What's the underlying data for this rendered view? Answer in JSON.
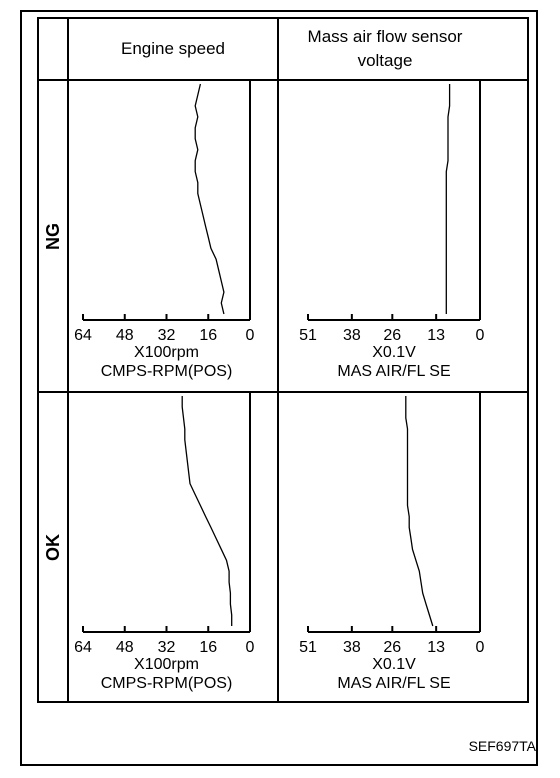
{
  "table": {
    "headers": [
      "Engine speed",
      "Mass air flow sensor voltage"
    ],
    "rows": [
      "NG",
      "OK"
    ]
  },
  "figure_id": "SEF697TA",
  "chart_data": [
    {
      "type": "line",
      "xlabel": "X100rpm",
      "item": "CMPS-RPM(POS)",
      "xlim": [
        64,
        0
      ],
      "xticks": [
        64,
        48,
        32,
        16,
        0
      ],
      "color": "#000000",
      "values": [
        19,
        20,
        21,
        20,
        21,
        21,
        20,
        21,
        21,
        20,
        20,
        19,
        18,
        17,
        16,
        15,
        13,
        12,
        11,
        10,
        11,
        10
      ]
    },
    {
      "type": "line",
      "xlabel": "X0.1V",
      "item": "MAS AIR/FL SE",
      "xlim": [
        51,
        0
      ],
      "xticks": [
        51,
        38,
        26,
        13,
        0
      ],
      "color": "#000000",
      "values": [
        9,
        9,
        9,
        9.5,
        9.5,
        9.5,
        9.5,
        9.5,
        10,
        10,
        10,
        10,
        10,
        10,
        10,
        10,
        10,
        10,
        10,
        10,
        10,
        10
      ]
    },
    {
      "type": "line",
      "xlabel": "X100rpm",
      "item": "CMPS-RPM(POS)",
      "xlim": [
        64,
        0
      ],
      "xticks": [
        64,
        48,
        32,
        16,
        0
      ],
      "color": "#000000",
      "values": [
        26,
        26,
        25.5,
        25,
        25,
        24.5,
        24,
        23.5,
        23,
        21,
        19,
        17,
        15,
        13,
        11,
        9,
        8,
        8,
        7.5,
        7.5,
        7,
        7
      ]
    },
    {
      "type": "line",
      "xlabel": "X0.1V",
      "item": "MAS AIR/FL SE",
      "xlim": [
        51,
        0
      ],
      "xticks": [
        51,
        38,
        26,
        13,
        0
      ],
      "color": "#000000",
      "values": [
        22,
        22,
        22,
        21.5,
        21.5,
        21.5,
        21.5,
        21.5,
        21.5,
        21.5,
        21.5,
        21,
        21,
        20.5,
        20,
        19,
        18,
        17.5,
        17,
        16,
        15,
        14
      ]
    }
  ]
}
